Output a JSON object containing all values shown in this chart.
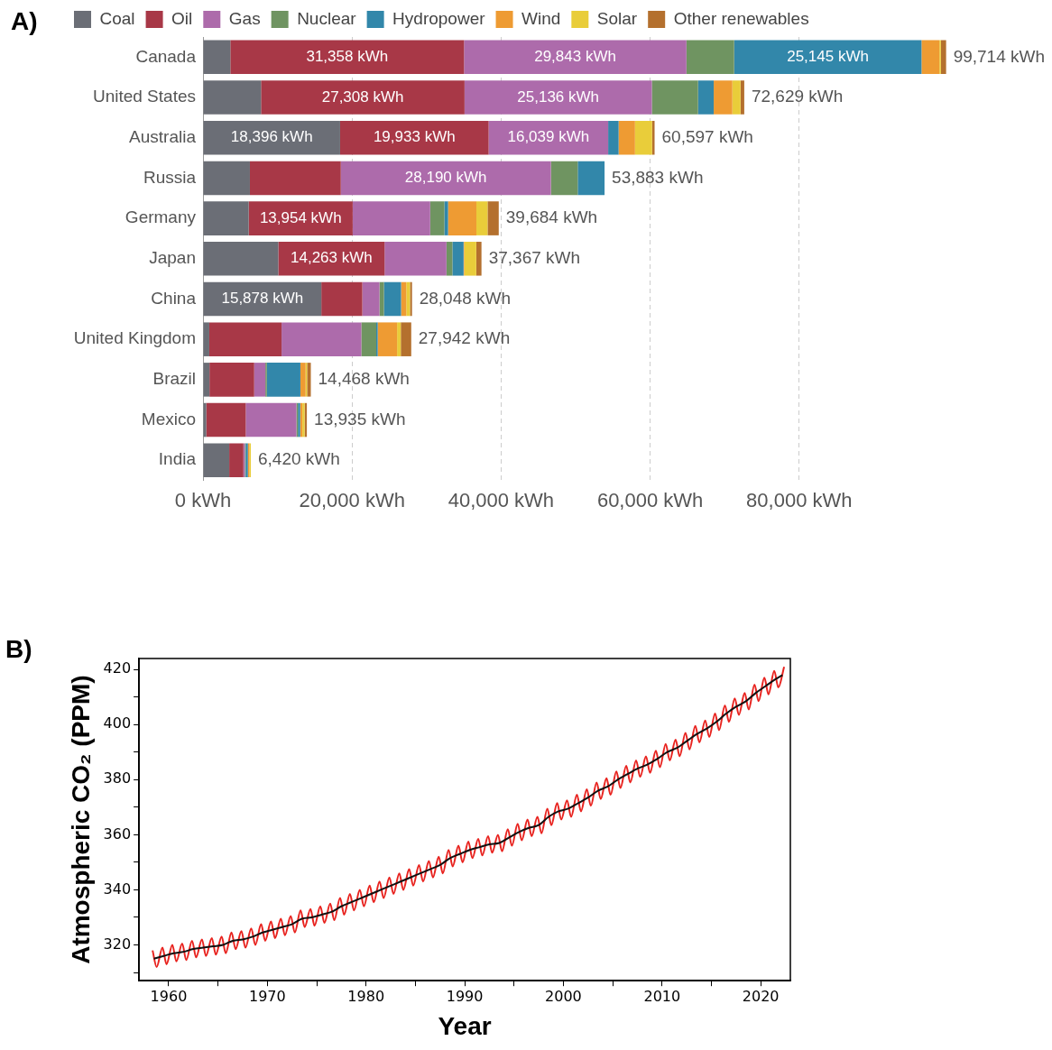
{
  "chart_data": [
    {
      "type": "bar",
      "title": "A)",
      "orientation": "horizontal",
      "stacked": true,
      "legend": "top left",
      "grid": "x",
      "categories": [
        "Canada",
        "United States",
        "Australia",
        "Russia",
        "Germany",
        "Japan",
        "China",
        "United Kingdom",
        "Brazil",
        "Mexico",
        "India"
      ],
      "series": [
        {
          "name": "Coal",
          "color": "#6b6e76",
          "values": [
            3668,
            7785,
            18396,
            6293,
            6130,
            10104,
            15878,
            842,
            868,
            435,
            3520
          ],
          "value_labels": [
            null,
            null,
            "18,396 kWh",
            null,
            null,
            null,
            "15,878 kWh",
            null,
            null,
            null,
            null
          ]
        },
        {
          "name": "Oil",
          "color": "#a83847",
          "values": [
            31358,
            27308,
            19933,
            12200,
            13954,
            14263,
            5500,
            9700,
            6000,
            5300,
            1900
          ],
          "value_labels": [
            "31,358 kWh",
            "27,308 kWh",
            "19,933 kWh",
            null,
            "13,954 kWh",
            "14,263 kWh",
            null,
            null,
            null,
            null,
            null
          ]
        },
        {
          "name": "Gas",
          "color": "#ad6bab",
          "values": [
            29843,
            25136,
            16039,
            28190,
            10400,
            8300,
            2300,
            10700,
            1500,
            6800,
            200
          ],
          "value_labels": [
            "29,843 kWh",
            "25,136 kWh",
            "16,039 kWh",
            "28,190 kWh",
            null,
            null,
            null,
            null,
            null,
            null,
            null
          ]
        },
        {
          "name": "Nuclear",
          "color": "#6f9461",
          "values": [
            6400,
            6200,
            0,
            3600,
            1900,
            800,
            600,
            2000,
            200,
            200,
            100
          ],
          "value_labels": [
            null,
            null,
            null,
            null,
            null,
            null,
            null,
            null,
            null,
            null,
            null
          ]
        },
        {
          "name": "Hydropower",
          "color": "#3287aa",
          "values": [
            25145,
            2100,
            1400,
            3600,
            500,
            1500,
            2300,
            200,
            4500,
            300,
            300
          ],
          "value_labels": [
            "25,145 kWh",
            null,
            null,
            null,
            null,
            null,
            null,
            null,
            null,
            null,
            null
          ]
        },
        {
          "name": "Wind",
          "color": "#ee9b33",
          "values": [
            2400,
            2500,
            2200,
            0,
            3800,
            100,
            700,
            2600,
            700,
            300,
            200
          ],
          "value_labels": [
            null,
            null,
            null,
            null,
            null,
            null,
            null,
            null,
            null,
            null,
            null
          ]
        },
        {
          "name": "Solar",
          "color": "#e9cd3a",
          "values": [
            200,
            1100,
            2300,
            0,
            1500,
            1600,
            500,
            500,
            200,
            300,
            200
          ],
          "value_labels": [
            null,
            null,
            null,
            null,
            null,
            null,
            null,
            null,
            null,
            null,
            null
          ]
        },
        {
          "name": "Other renewables",
          "color": "#b4702e",
          "values": [
            700,
            500,
            329,
            0,
            1500,
            700,
            270,
            1400,
            500,
            300,
            0
          ],
          "value_labels": [
            null,
            null,
            null,
            null,
            null,
            null,
            null,
            null,
            null,
            null,
            null
          ]
        }
      ],
      "totals": [
        "99,714 kWh",
        "72,629 kWh",
        "60,597 kWh",
        "53,883 kWh",
        "39,684 kWh",
        "37,367 kWh",
        "28,048 kWh",
        "27,942 kWh",
        "14,468 kWh",
        "13,935 kWh",
        "6,420 kWh"
      ],
      "xlim": [
        0,
        100000
      ],
      "xticks": [
        {
          "value": 0,
          "label": "0 kWh"
        },
        {
          "value": 20000,
          "label": "20,000 kWh"
        },
        {
          "value": 40000,
          "label": "40,000 kWh"
        },
        {
          "value": 60000,
          "label": "60,000 kWh"
        },
        {
          "value": 80000,
          "label": "80,000 kWh"
        }
      ]
    },
    {
      "type": "line",
      "title": "B)",
      "xlabel": "Year",
      "ylabel": "Atmospheric CO₂ (PPM)",
      "legend": false,
      "grid": false,
      "marker": "none",
      "line_style": "solid",
      "xlim": [
        1957,
        2023
      ],
      "ylim": [
        307,
        424
      ],
      "xticks": [
        1960,
        {
          "value": 1965,
          "label": null
        },
        1970,
        {
          "value": 1975,
          "label": null
        },
        1980,
        {
          "value": 1985,
          "label": null
        },
        1990,
        {
          "value": 1995,
          "label": null
        },
        2000,
        {
          "value": 2005,
          "label": null
        },
        2010,
        {
          "value": 2015,
          "label": null
        },
        2020
      ],
      "yticks": [
        {
          "value": 310,
          "label": null
        },
        320,
        {
          "value": 330,
          "label": null
        },
        340,
        {
          "value": 350,
          "label": null
        },
        360,
        {
          "value": 370,
          "label": null
        },
        380,
        {
          "value": 390,
          "label": null
        },
        400,
        {
          "value": 410,
          "label": null
        },
        420
      ],
      "series": [
        {
          "color": "#e8231f",
          "x": [
            1958.37,
            1958.78,
            1959.37,
            1959.78,
            1960.37,
            1960.78,
            1961.37,
            1961.78,
            1962.37,
            1962.78,
            1963.37,
            1963.78,
            1964.37,
            1964.78,
            1965.37,
            1965.78,
            1966.37,
            1966.78,
            1967.37,
            1967.78,
            1968.37,
            1968.78,
            1969.37,
            1969.78,
            1970.37,
            1970.78,
            1971.37,
            1971.78,
            1972.37,
            1972.78,
            1973.37,
            1973.78,
            1974.37,
            1974.78,
            1975.37,
            1975.78,
            1976.37,
            1976.78,
            1977.37,
            1977.78,
            1978.37,
            1978.78,
            1979.37,
            1979.78,
            1980.37,
            1980.78,
            1981.37,
            1981.78,
            1982.37,
            1982.78,
            1983.37,
            1983.78,
            1984.37,
            1984.78,
            1985.37,
            1985.78,
            1986.37,
            1986.78,
            1987.37,
            1987.78,
            1988.37,
            1988.78,
            1989.37,
            1989.78,
            1990.37,
            1990.78,
            1991.37,
            1991.78,
            1992.37,
            1992.78,
            1993.37,
            1993.78,
            1994.37,
            1994.78,
            1995.37,
            1995.78,
            1996.37,
            1996.78,
            1997.37,
            1997.78,
            1998.37,
            1998.78,
            1999.37,
            1999.78,
            2000.37,
            2000.78,
            2001.37,
            2001.78,
            2002.37,
            2002.78,
            2003.37,
            2003.78,
            2004.37,
            2004.78,
            2005.37,
            2005.78,
            2006.37,
            2006.78,
            2007.37,
            2007.78,
            2008.37,
            2008.78,
            2009.37,
            2009.78,
            2010.37,
            2010.78,
            2011.37,
            2011.78,
            2012.37,
            2012.78,
            2013.37,
            2013.78,
            2014.37,
            2014.78,
            2015.37,
            2015.78,
            2016.37,
            2016.78,
            2017.37,
            2017.78,
            2018.37,
            2018.78,
            2019.37,
            2019.78,
            2020.37,
            2020.78,
            2021.37,
            2021.78,
            2022.37
          ],
          "values": [
            318,
            312,
            319,
            313,
            320,
            314,
            320.5,
            314.5,
            321.5,
            315.5,
            322,
            316,
            322.5,
            316.5,
            323,
            317,
            324.5,
            318.5,
            325,
            319,
            326,
            320,
            327.5,
            321.5,
            328.5,
            322.5,
            329.5,
            323.5,
            330.5,
            324.5,
            332.5,
            326.5,
            333,
            327,
            334,
            328,
            335,
            329,
            337,
            331,
            338.5,
            332.5,
            340,
            334,
            341.5,
            335.5,
            343,
            337,
            344.5,
            338.5,
            346,
            340,
            347.5,
            341.5,
            349,
            343,
            350.5,
            344.5,
            352,
            346,
            354.5,
            348.5,
            356,
            350,
            357.5,
            351.5,
            358.5,
            352.5,
            359.5,
            353.5,
            360,
            354,
            362,
            356,
            364,
            358,
            365.5,
            359.5,
            366.5,
            360.5,
            369.5,
            363.5,
            371.5,
            365.5,
            372.5,
            366.5,
            374.5,
            368.5,
            376.5,
            370.5,
            379,
            373,
            380.5,
            374.5,
            383,
            377,
            385,
            379,
            387,
            381,
            388.5,
            382.5,
            390.5,
            384.5,
            393,
            387,
            394.5,
            388.5,
            397,
            391,
            399.5,
            393.5,
            401.5,
            395.5,
            404,
            398,
            407,
            401,
            409.5,
            403.5,
            411.5,
            405.5,
            414.5,
            408.5,
            417,
            411,
            419.5,
            413.5,
            421
          ]
        },
        {
          "color": "#111111",
          "x": [
            1958.5,
            1959.5,
            1960.5,
            1961.5,
            1962.5,
            1963.5,
            1964.5,
            1965.5,
            1966.5,
            1967.5,
            1968.5,
            1969.5,
            1970.5,
            1971.5,
            1972.5,
            1973.5,
            1974.5,
            1975.5,
            1976.5,
            1977.5,
            1978.5,
            1979.5,
            1980.5,
            1981.5,
            1982.5,
            1983.5,
            1984.5,
            1985.5,
            1986.5,
            1987.5,
            1988.5,
            1989.5,
            1990.5,
            1991.5,
            1992.5,
            1993.5,
            1994.5,
            1995.5,
            1996.5,
            1997.5,
            1998.5,
            1999.5,
            2000.5,
            2001.5,
            2002.5,
            2003.5,
            2004.5,
            2005.5,
            2006.5,
            2007.5,
            2008.5,
            2009.5,
            2010.5,
            2011.5,
            2012.5,
            2013.5,
            2014.5,
            2015.5,
            2016.5,
            2017.5,
            2018.5,
            2019.5,
            2020.5,
            2021.5,
            2022.2
          ],
          "values": [
            315,
            316,
            317,
            317.5,
            318.5,
            319,
            319.5,
            320,
            321.5,
            322,
            323,
            324.5,
            325.5,
            326.5,
            327.5,
            329.5,
            330,
            331,
            332,
            334,
            335.5,
            337,
            338.5,
            340,
            341.5,
            343,
            344.5,
            346,
            347.5,
            349,
            351.5,
            353,
            354.5,
            355.5,
            356.5,
            357,
            359,
            361,
            362.5,
            363.5,
            366.5,
            368.5,
            369.5,
            371.5,
            373.5,
            376,
            377.5,
            380,
            382,
            384,
            385.5,
            387.5,
            390,
            391.5,
            394,
            396.5,
            398.5,
            401,
            404,
            406.5,
            408.5,
            411.5,
            414,
            416.5,
            418
          ]
        }
      ]
    }
  ]
}
